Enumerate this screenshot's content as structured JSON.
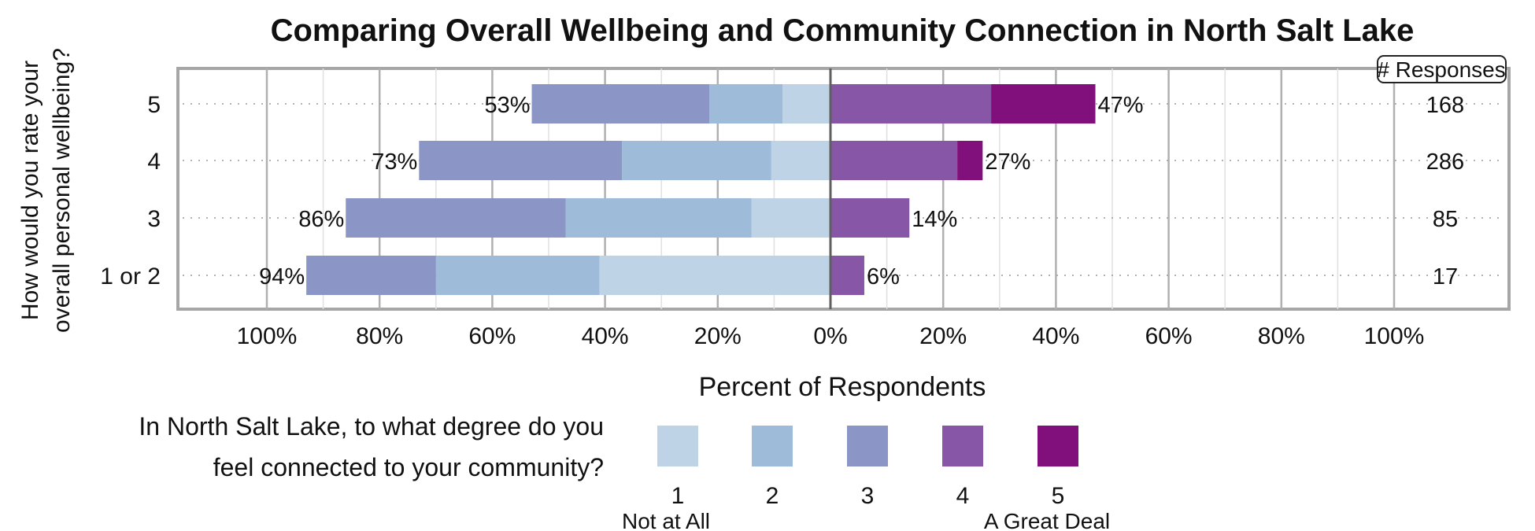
{
  "chart_data": {
    "type": "bar",
    "orientation": "horizontal-diverging",
    "title": "Comparing Overall Wellbeing and Community Connection in North Salt Lake",
    "xlabel": "Percent of Respondents",
    "ylabel": "How would you rate your overall personal wellbeing?",
    "categories": [
      "5",
      "4",
      "3",
      "1 or 2"
    ],
    "xlim": [
      -100,
      100
    ],
    "x_ticks": [
      "100%",
      "80%",
      "60%",
      "40%",
      "20%",
      "0%",
      "20%",
      "40%",
      "60%",
      "80%",
      "100%"
    ],
    "series": [
      {
        "name": "1",
        "color": "#bfd3e6",
        "side": "left",
        "values": [
          8.5,
          10.5,
          14,
          41
        ]
      },
      {
        "name": "2",
        "color": "#9ebcda",
        "side": "left",
        "values": [
          13,
          26.5,
          33,
          29
        ]
      },
      {
        "name": "3",
        "color": "#8c96c6",
        "side": "left",
        "values": [
          31.5,
          36,
          39,
          23
        ]
      },
      {
        "name": "4",
        "color": "#8856a7",
        "side": "right",
        "values": [
          28.5,
          22.5,
          14,
          6
        ]
      },
      {
        "name": "5",
        "color": "#810f7c",
        "side": "right",
        "values": [
          18.5,
          4.5,
          0,
          0
        ]
      }
    ],
    "left_totals": [
      "53%",
      "73%",
      "86%",
      "94%"
    ],
    "right_totals": [
      "47%",
      "27%",
      "14%",
      "6%"
    ],
    "responses_header": "# Responses",
    "responses": [
      "168",
      "286",
      "85",
      "17"
    ],
    "legend": {
      "title_line1": "In North Salt Lake, to what degree do you",
      "title_line2": "feel connected to your community?",
      "labels": [
        "1",
        "2",
        "3",
        "4",
        "5"
      ],
      "low_anchor": "Not at All",
      "high_anchor": "A Great Deal",
      "placement": "bottom"
    },
    "grid": true
  }
}
